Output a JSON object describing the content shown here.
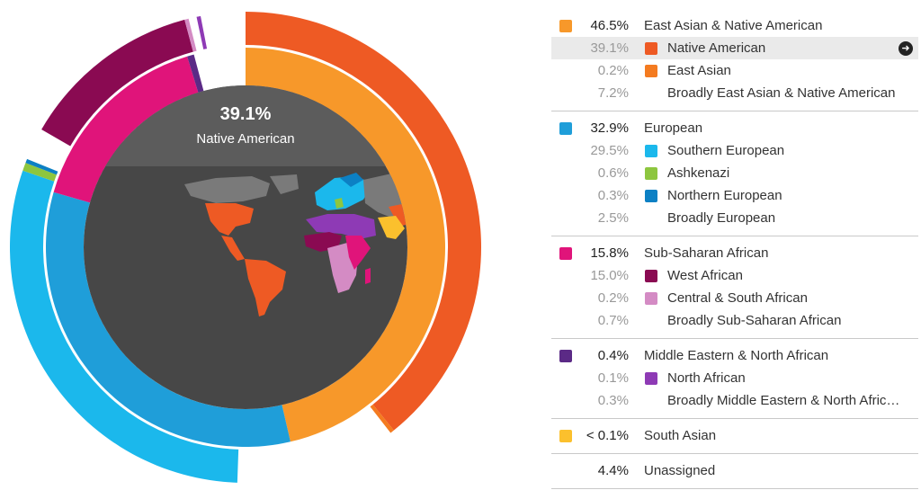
{
  "center": {
    "percent": "39.1%",
    "label": "Native American"
  },
  "legend": {
    "groups": [
      {
        "rows": [
          {
            "type": "top",
            "percent": "46.5%",
            "label": "East Asian & Native American",
            "color": "#f7982a"
          },
          {
            "type": "sub",
            "percent": "39.1%",
            "label": "Native American",
            "color": "#ee5a24",
            "highlight": true
          },
          {
            "type": "sub",
            "percent": "0.2%",
            "label": "East Asian",
            "color": "#f47b20"
          },
          {
            "type": "sub",
            "percent": "7.2%",
            "label": "Broadly East Asian & Native American",
            "color": null
          }
        ]
      },
      {
        "rows": [
          {
            "type": "top",
            "percent": "32.9%",
            "label": "European",
            "color": "#1f9ed9"
          },
          {
            "type": "sub",
            "percent": "29.5%",
            "label": "Southern European",
            "color": "#1bb8ec"
          },
          {
            "type": "sub",
            "percent": "0.6%",
            "label": "Ashkenazi",
            "color": "#8dc63f"
          },
          {
            "type": "sub",
            "percent": "0.3%",
            "label": "Northern European",
            "color": "#0c80c4"
          },
          {
            "type": "sub",
            "percent": "2.5%",
            "label": "Broadly European",
            "color": null
          }
        ]
      },
      {
        "rows": [
          {
            "type": "top",
            "percent": "15.8%",
            "label": "Sub-Saharan African",
            "color": "#e0147a"
          },
          {
            "type": "sub",
            "percent": "15.0%",
            "label": "West African",
            "color": "#8a0a52"
          },
          {
            "type": "sub",
            "percent": "0.2%",
            "label": "Central & South African",
            "color": "#d48bc4"
          },
          {
            "type": "sub",
            "percent": "0.7%",
            "label": "Broadly Sub-Saharan African",
            "color": null
          }
        ]
      },
      {
        "rows": [
          {
            "type": "top",
            "percent": "0.4%",
            "label": "Middle Eastern & North African",
            "color": "#5b2a86"
          },
          {
            "type": "sub",
            "percent": "0.1%",
            "label": "North African",
            "color": "#8e3ab5"
          },
          {
            "type": "sub",
            "percent": "0.3%",
            "label": "Broadly Middle Eastern & North Afric…",
            "color": null
          }
        ]
      },
      {
        "rows": [
          {
            "type": "top",
            "percent": "< 0.1%",
            "label": "South Asian",
            "color": "#fbc02d"
          }
        ]
      },
      {
        "rows": [
          {
            "type": "top",
            "percent": "4.4%",
            "label": "Unassigned",
            "color": null
          }
        ]
      }
    ]
  },
  "colors": {
    "map_background": "#474747",
    "map_header": "#5c5c5c",
    "map_land": "#7a7a7a"
  },
  "icons": {
    "row_arrow": "arrow-right-circle-icon"
  }
}
